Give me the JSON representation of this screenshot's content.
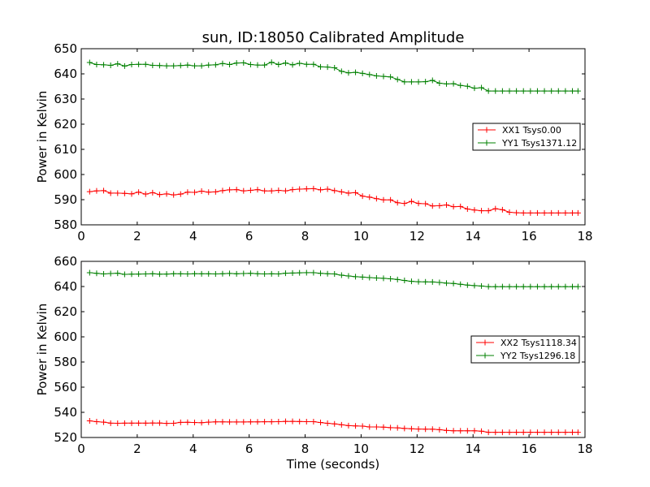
{
  "chart_data": [
    {
      "type": "line",
      "title": "sun, ID:18050 Calibrated Amplitude",
      "xlabel": "",
      "ylabel": "Power in Kelvin",
      "xlim": [
        0,
        18
      ],
      "ylim": [
        580,
        650
      ],
      "xticks": [
        0,
        2,
        4,
        6,
        8,
        10,
        12,
        14,
        16,
        18
      ],
      "yticks": [
        580,
        590,
        600,
        610,
        620,
        630,
        640,
        650
      ],
      "grid": false,
      "legend_position": "center-right",
      "x": [
        0.3,
        0.55,
        0.8,
        1.05,
        1.3,
        1.55,
        1.8,
        2.05,
        2.3,
        2.55,
        2.8,
        3.05,
        3.3,
        3.55,
        3.8,
        4.05,
        4.3,
        4.55,
        4.8,
        5.05,
        5.3,
        5.55,
        5.8,
        6.05,
        6.3,
        6.55,
        6.8,
        7.05,
        7.3,
        7.55,
        7.8,
        8.05,
        8.3,
        8.55,
        8.8,
        9.05,
        9.3,
        9.55,
        9.8,
        10.05,
        10.3,
        10.55,
        10.8,
        11.05,
        11.3,
        11.55,
        11.8,
        12.05,
        12.3,
        12.55,
        12.8,
        13.05,
        13.3,
        13.55,
        13.8,
        14.05,
        14.3,
        14.55,
        14.8,
        15.05,
        15.3,
        15.55,
        15.8,
        16.05,
        16.3,
        16.55,
        16.8,
        17.05,
        17.3,
        17.55,
        17.75
      ],
      "series": [
        {
          "name": "XX1 Tsys0.00",
          "color": "#ff0000",
          "values": [
            593.2,
            593.5,
            593.6,
            592.6,
            592.6,
            592.5,
            592.3,
            593.0,
            592.2,
            592.8,
            592.0,
            592.3,
            591.9,
            592.2,
            593.0,
            592.9,
            593.4,
            593.0,
            593.1,
            593.6,
            593.9,
            594.0,
            593.5,
            593.7,
            594.0,
            593.5,
            593.5,
            593.7,
            593.5,
            594.0,
            594.2,
            594.3,
            594.4,
            593.9,
            594.2,
            593.6,
            593.1,
            592.6,
            592.8,
            591.4,
            591.0,
            590.4,
            589.9,
            589.9,
            588.8,
            588.5,
            589.3,
            588.5,
            588.4,
            587.5,
            587.6,
            587.9,
            587.2,
            587.3,
            586.3,
            585.9,
            585.6,
            585.6,
            586.4,
            586.0,
            585.0,
            584.8,
            584.7,
            584.7,
            584.7,
            584.7,
            584.7,
            584.7,
            584.7,
            584.7,
            584.7
          ]
        },
        {
          "name": "YY1 Tsys1371.12",
          "color": "#008000",
          "values": [
            644.5,
            643.7,
            643.6,
            643.4,
            644.0,
            643.1,
            643.7,
            643.8,
            643.8,
            643.4,
            643.3,
            643.2,
            643.2,
            643.3,
            643.5,
            643.2,
            643.2,
            643.5,
            643.6,
            644.1,
            643.7,
            644.3,
            644.4,
            643.7,
            643.5,
            643.5,
            644.6,
            643.7,
            644.3,
            643.6,
            644.2,
            643.8,
            643.8,
            642.8,
            642.7,
            642.4,
            641.0,
            640.4,
            640.6,
            640.2,
            639.7,
            639.2,
            639.0,
            638.8,
            637.8,
            636.8,
            636.8,
            636.8,
            636.9,
            637.4,
            636.3,
            636.0,
            636.1,
            635.4,
            635.1,
            634.3,
            634.5,
            633.2,
            633.2,
            633.2,
            633.2,
            633.2,
            633.2,
            633.2,
            633.2,
            633.2,
            633.2,
            633.2,
            633.2,
            633.2,
            633.2
          ]
        }
      ]
    },
    {
      "type": "line",
      "title": "",
      "xlabel": "Time (seconds)",
      "ylabel": "Power in Kelvin",
      "xlim": [
        0,
        18
      ],
      "ylim": [
        520,
        660
      ],
      "xticks": [
        0,
        2,
        4,
        6,
        8,
        10,
        12,
        14,
        16,
        18
      ],
      "yticks": [
        520,
        540,
        560,
        580,
        600,
        620,
        640,
        660
      ],
      "grid": false,
      "legend_position": "center-right",
      "x": [
        0.3,
        0.55,
        0.8,
        1.05,
        1.3,
        1.55,
        1.8,
        2.05,
        2.3,
        2.55,
        2.8,
        3.05,
        3.3,
        3.55,
        3.8,
        4.05,
        4.3,
        4.55,
        4.8,
        5.05,
        5.3,
        5.55,
        5.8,
        6.05,
        6.3,
        6.55,
        6.8,
        7.05,
        7.3,
        7.55,
        7.8,
        8.05,
        8.3,
        8.55,
        8.8,
        9.05,
        9.3,
        9.55,
        9.8,
        10.05,
        10.3,
        10.55,
        10.8,
        11.05,
        11.3,
        11.55,
        11.8,
        12.05,
        12.3,
        12.55,
        12.8,
        13.05,
        13.3,
        13.55,
        13.8,
        14.05,
        14.3,
        14.55,
        14.8,
        15.05,
        15.3,
        15.55,
        15.8,
        16.05,
        16.3,
        16.55,
        16.8,
        17.05,
        17.3,
        17.55,
        17.75
      ],
      "series": [
        {
          "name": "XX2 Tsys1118.34",
          "color": "#ff0000",
          "values": [
            533.2,
            532.6,
            532.2,
            531.4,
            531.3,
            531.4,
            531.4,
            531.4,
            531.4,
            531.5,
            531.5,
            531.2,
            531.3,
            532.0,
            532.1,
            531.9,
            531.8,
            532.2,
            532.4,
            532.4,
            532.3,
            532.3,
            532.3,
            532.4,
            532.4,
            532.5,
            532.5,
            532.6,
            532.8,
            532.8,
            532.7,
            532.6,
            532.6,
            531.9,
            531.3,
            530.8,
            530.1,
            529.4,
            529.2,
            529.0,
            528.4,
            528.4,
            528.2,
            527.8,
            527.7,
            527.2,
            526.9,
            526.7,
            526.6,
            526.6,
            526.2,
            525.6,
            525.3,
            525.3,
            525.3,
            525.3,
            525.0,
            524.1,
            524.1,
            524.1,
            524.1,
            524.1,
            524.1,
            524.1,
            524.1,
            524.1,
            524.1,
            524.1,
            524.1,
            524.1,
            524.1
          ]
        },
        {
          "name": "YY2 Tsys1296.18",
          "color": "#008000",
          "values": [
            651.0,
            650.5,
            650.0,
            650.3,
            650.6,
            649.7,
            649.8,
            649.9,
            650.0,
            650.2,
            649.8,
            649.9,
            650.2,
            650.1,
            650.0,
            650.2,
            650.1,
            650.1,
            650.0,
            650.2,
            650.4,
            650.1,
            650.3,
            650.5,
            650.2,
            650.0,
            650.1,
            650.0,
            650.6,
            650.7,
            650.9,
            651.0,
            651.0,
            650.5,
            650.2,
            650.0,
            649.0,
            648.4,
            647.8,
            647.5,
            647.1,
            646.8,
            646.5,
            646.1,
            645.6,
            644.8,
            644.1,
            643.8,
            643.7,
            643.6,
            643.2,
            642.7,
            642.4,
            641.8,
            641.1,
            640.7,
            640.4,
            639.9,
            639.9,
            639.9,
            639.9,
            639.9,
            639.9,
            639.9,
            639.9,
            639.9,
            639.9,
            639.9,
            639.9,
            639.9,
            639.9
          ]
        }
      ]
    }
  ]
}
